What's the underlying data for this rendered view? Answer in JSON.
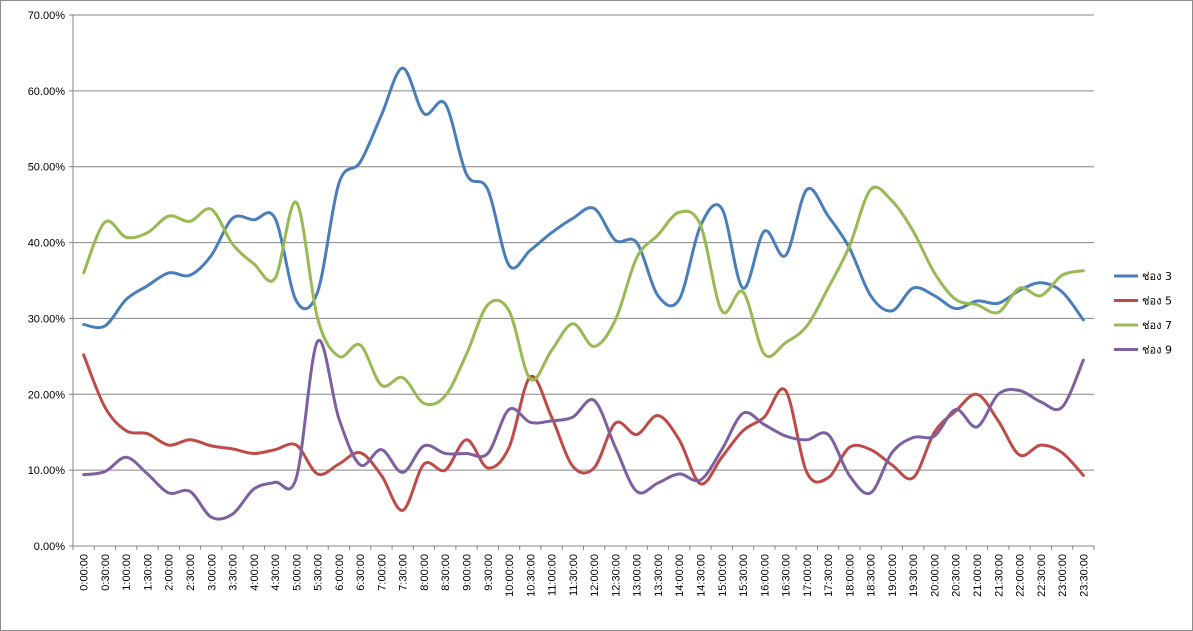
{
  "chart_data": {
    "type": "line",
    "title": "",
    "xlabel": "",
    "ylabel": "",
    "ylim": [
      0,
      70
    ],
    "y_ticks": [
      "0.00%",
      "10.00%",
      "20.00%",
      "30.00%",
      "40.00%",
      "50.00%",
      "60.00%",
      "70.00%"
    ],
    "y_unit": "%",
    "grid": "horizontal",
    "legend_position": "right",
    "smooth": true,
    "categories": [
      "0:00:00",
      "0:30:00",
      "1:00:00",
      "1:30:00",
      "2:00:00",
      "2:30:00",
      "3:00:00",
      "3:30:00",
      "4:00:00",
      "4:30:00",
      "5:00:00",
      "5:30:00",
      "6:00:00",
      "6:30:00",
      "7:00:00",
      "7:30:00",
      "8:00:00",
      "8:30:00",
      "9:00:00",
      "9:30:00",
      "10:00:00",
      "10:30:00",
      "11:00:00",
      "11:30:00",
      "12:00:00",
      "12:30:00",
      "13:00:00",
      "13:30:00",
      "14:00:00",
      "14:30:00",
      "15:00:00",
      "15:30:00",
      "16:00:00",
      "16:30:00",
      "17:00:00",
      "17:30:00",
      "18:00:00",
      "18:30:00",
      "19:00:00",
      "19:30:00",
      "20:00:00",
      "20:30:00",
      "21:00:00",
      "21:30:00",
      "22:00:00",
      "22:30:00",
      "23:00:00",
      "23:30:00"
    ],
    "series": [
      {
        "name": "ช่อง 3",
        "color": "#4a7ebb",
        "values": [
          29.2,
          29.0,
          32.5,
          34.3,
          36.0,
          35.7,
          38.3,
          43.2,
          43.0,
          43.2,
          32.3,
          33.5,
          47.8,
          50.6,
          56.8,
          63.0,
          57.0,
          58.3,
          49.0,
          47.0,
          37.0,
          39.0,
          41.3,
          43.2,
          44.5,
          40.3,
          40.0,
          33.0,
          32.5,
          42.2,
          44.5,
          34.0,
          41.5,
          38.3,
          47.0,
          43.5,
          39.3,
          33.0,
          31.0,
          34.0,
          33.0,
          31.3,
          32.3,
          32.0,
          33.7,
          34.7,
          33.5,
          29.8
        ]
      },
      {
        "name": "ช่อง 5",
        "color": "#be4b48",
        "values": [
          25.2,
          18.3,
          15.2,
          14.8,
          13.3,
          14.0,
          13.2,
          12.8,
          12.2,
          12.7,
          13.3,
          9.5,
          10.8,
          12.3,
          9.3,
          4.7,
          10.8,
          10.0,
          14.0,
          10.3,
          13.0,
          22.3,
          17.0,
          10.5,
          10.3,
          16.2,
          14.7,
          17.2,
          14.0,
          8.2,
          11.7,
          15.2,
          17.0,
          20.5,
          9.7,
          9.0,
          13.0,
          12.7,
          10.7,
          9.0,
          15.0,
          17.8,
          20.0,
          16.5,
          12.0,
          13.3,
          12.3,
          9.3
        ]
      },
      {
        "name": "ช่อง 7",
        "color": "#98b954",
        "values": [
          36.0,
          42.7,
          40.7,
          41.3,
          43.5,
          42.8,
          44.4,
          39.8,
          37.2,
          35.3,
          45.3,
          30.0,
          25.0,
          26.5,
          21.2,
          22.2,
          18.8,
          19.8,
          25.3,
          31.8,
          31.0,
          22.0,
          25.8,
          29.3,
          26.3,
          29.8,
          38.0,
          41.0,
          44.0,
          42.3,
          31.0,
          33.5,
          25.3,
          26.8,
          29.0,
          34.0,
          39.5,
          47.0,
          45.5,
          41.5,
          36.0,
          32.5,
          31.8,
          30.8,
          34.0,
          33.0,
          35.7,
          36.3
        ]
      },
      {
        "name": "ช่อง 9",
        "color": "#7d60a0",
        "values": [
          9.4,
          9.8,
          11.7,
          9.5,
          7.0,
          7.2,
          3.8,
          4.2,
          7.5,
          8.4,
          9.0,
          27.0,
          16.8,
          10.7,
          12.7,
          9.7,
          13.2,
          12.2,
          12.2,
          12.2,
          18.0,
          16.3,
          16.5,
          17.0,
          19.2,
          13.0,
          7.2,
          8.3,
          9.5,
          8.7,
          12.7,
          17.5,
          16.0,
          14.5,
          14.0,
          14.7,
          9.3,
          7.0,
          12.3,
          14.3,
          14.5,
          18.0,
          15.7,
          20.0,
          20.5,
          19.0,
          18.3,
          24.5
        ]
      }
    ]
  }
}
